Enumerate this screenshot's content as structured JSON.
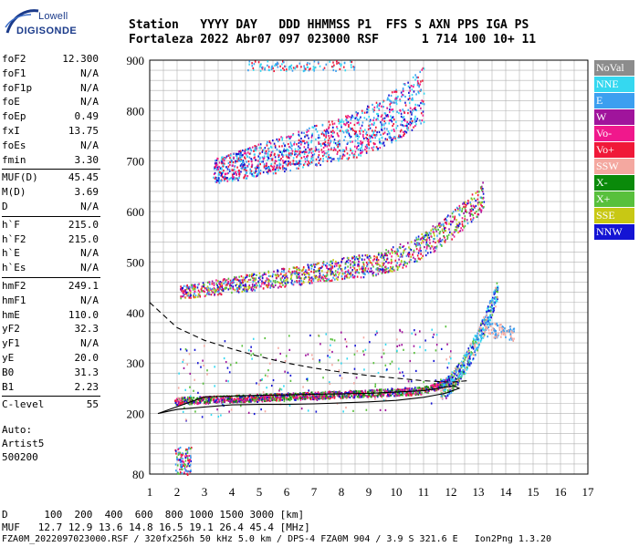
{
  "logo": {
    "line1": "Lowell",
    "line2": "DIGISONDE"
  },
  "header": {
    "labels": "Station   YYYY DAY   DDD HHMMSS P1  FFS S AXN PPS IGA PS",
    "values": "Fortaleza 2022 Abr07 097 023000 RSF      1 714 100 10+ 11"
  },
  "params": [
    {
      "name": "foF2",
      "value": "12.300"
    },
    {
      "name": "foF1",
      "value": "N/A"
    },
    {
      "name": "foF1p",
      "value": "N/A"
    },
    {
      "name": "foE",
      "value": "N/A"
    },
    {
      "name": "foEp",
      "value": "0.49"
    },
    {
      "name": "fxI",
      "value": "13.75"
    },
    {
      "name": "foEs",
      "value": "N/A"
    },
    {
      "name": "fmin",
      "value": "3.30"
    },
    {
      "name": "MUF(D)",
      "value": "45.45"
    },
    {
      "name": "M(D)",
      "value": "3.69"
    },
    {
      "name": "D",
      "value": "N/A"
    },
    {
      "name": "h`F",
      "value": "215.0"
    },
    {
      "name": "h`F2",
      "value": "215.0"
    },
    {
      "name": "h`E",
      "value": "N/A"
    },
    {
      "name": "h`Es",
      "value": "N/A"
    },
    {
      "name": "hmF2",
      "value": "249.1"
    },
    {
      "name": "hmF1",
      "value": "N/A"
    },
    {
      "name": "hmE",
      "value": "110.0"
    },
    {
      "name": "yF2",
      "value": "32.3"
    },
    {
      "name": "yF1",
      "value": "N/A"
    },
    {
      "name": "yE",
      "value": "20.0"
    },
    {
      "name": "B0",
      "value": "31.3"
    },
    {
      "name": "B1",
      "value": "2.23"
    },
    {
      "name": "C-level",
      "value": "55"
    }
  ],
  "software": {
    "auto": "Auto:",
    "name": "Artist5",
    "version": "500200"
  },
  "legend": [
    {
      "label": "NoVal",
      "color": "#8c8c8c"
    },
    {
      "label": "NNE",
      "color": "#35d8f0"
    },
    {
      "label": "E",
      "color": "#3c9ff0"
    },
    {
      "label": "W",
      "color": "#a0149c"
    },
    {
      "label": "Vo-",
      "color": "#f0188c"
    },
    {
      "label": "Vo+",
      "color": "#f01838"
    },
    {
      "label": "SSW",
      "color": "#f4a8a0"
    },
    {
      "label": "X-",
      "color": "#0a8a0a"
    },
    {
      "label": "X+",
      "color": "#58c03c"
    },
    {
      "label": "SSE",
      "color": "#c8c814"
    },
    {
      "label": "NNW",
      "color": "#1414d4"
    }
  ],
  "footer": {
    "line1": "D      100  200  400  600  800 1000 1500 3000 [km]",
    "line2": "MUF   12.7 12.9 13.6 14.8 16.5 19.1 26.4 45.4 [MHz]",
    "line3": "FZA0M_2022097023000.RSF / 320fx256h 50 kHz 5.0 km / DPS-4 FZA0M 904 / 3.9 S 321.6 E   Ion2Png 1.3.20"
  },
  "chart_data": {
    "type": "scatter",
    "xlabel": "",
    "ylabel": "",
    "xlim": [
      1,
      17
    ],
    "ylim": [
      80,
      900
    ],
    "x_ticks": [
      1,
      2,
      3,
      4,
      5,
      6,
      7,
      8,
      9,
      10,
      11,
      12,
      13,
      14,
      15,
      16,
      17
    ],
    "y_ticks": [
      80,
      200,
      300,
      400,
      500,
      600,
      700,
      800,
      900
    ],
    "grid": true,
    "traces": [
      {
        "name": "",
        "style": "solid",
        "x": [
          1.3,
          2.0,
          3.0,
          4.0,
          5.0,
          6.0,
          7.0,
          8.0,
          9.0,
          10.0,
          11.0,
          11.8,
          12.3,
          12.1,
          11.0,
          9.0,
          7.0,
          5.0,
          3.0,
          1.3
        ],
        "y": [
          200,
          208,
          213,
          217,
          218,
          218,
          219,
          221,
          223,
          226,
          232,
          240,
          250,
          255,
          245,
          240,
          238,
          236,
          233,
          200
        ]
      },
      {
        "name": "",
        "style": "dashed",
        "x": [
          1.0,
          2.0,
          3.0,
          4.0,
          5.0,
          6.0,
          7.0,
          8.0,
          9.0,
          10.0,
          11.0,
          12.0,
          12.6
        ],
        "y": [
          420,
          370,
          345,
          328,
          313,
          300,
          290,
          282,
          275,
          270,
          265,
          262,
          265
        ]
      }
    ],
    "echo_bands": [
      {
        "name": "F 1-hop",
        "x": [
          1.9,
          12.3
        ],
        "y": [
          215,
          260
        ]
      },
      {
        "name": "F 1-hop high",
        "x": [
          12.3,
          13.6
        ],
        "y": [
          260,
          400
        ]
      },
      {
        "name": "F 2-hop",
        "x": [
          2.0,
          13.5
        ],
        "y": [
          440,
          620
        ]
      },
      {
        "name": "F 3-hop",
        "x": [
          3.2,
          11.0
        ],
        "y": [
          655,
          880
        ]
      },
      {
        "name": "Es low",
        "x": [
          1.9,
          2.6
        ],
        "y": [
          80,
          150
        ]
      }
    ]
  }
}
